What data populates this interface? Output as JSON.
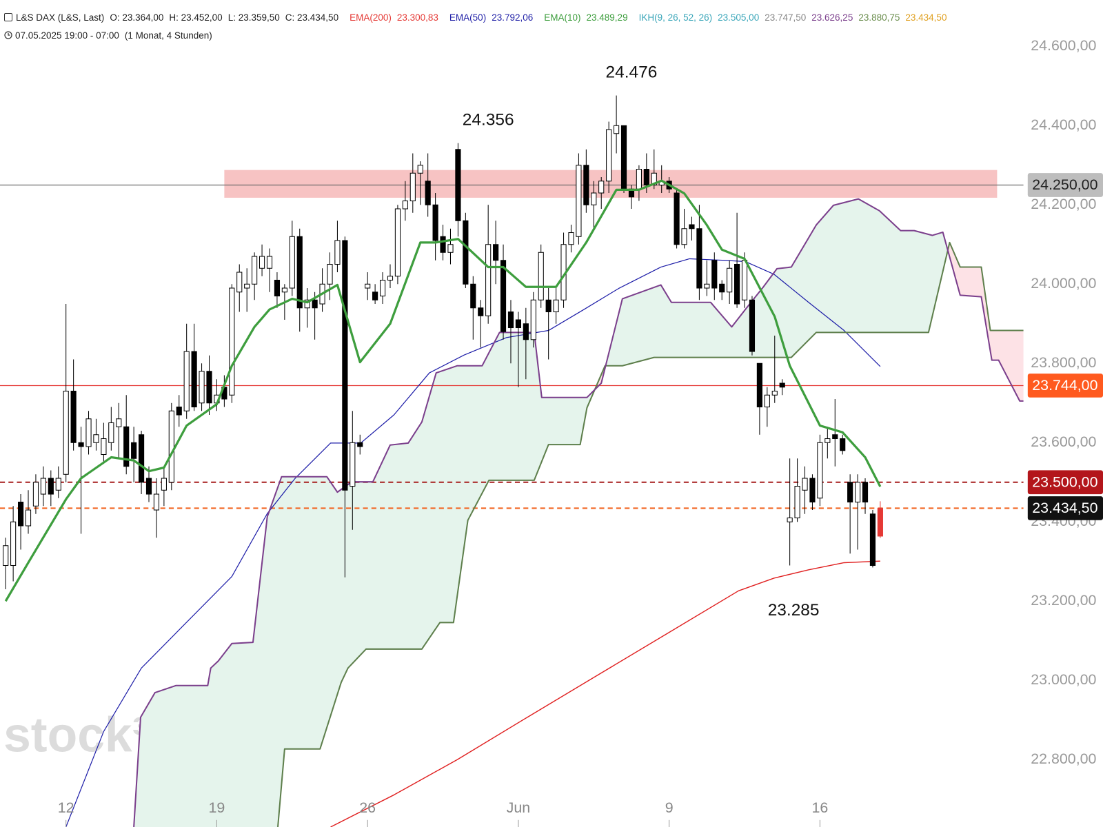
{
  "header": {
    "symbol": "L&S DAX (L&S, Last)",
    "ohlc": [
      "O: 23.364,00",
      "H: 23.452,00",
      "L: 23.359,50",
      "C: 23.434,50"
    ],
    "indicators": [
      {
        "name": "EMA(200)",
        "color": "#e53935",
        "values": [
          {
            "text": "23.300,83",
            "color": "#e53935"
          }
        ]
      },
      {
        "name": "EMA(50)",
        "color": "#2323a8",
        "values": [
          {
            "text": "23.792,06",
            "color": "#2323a8"
          }
        ]
      },
      {
        "name": "EMA(10)",
        "color": "#3e9e3e",
        "values": [
          {
            "text": "23.489,29",
            "color": "#3e9e3e"
          }
        ]
      },
      {
        "name": "IKH(9, 26, 52, 26)",
        "color": "#3aa6b9",
        "values": [
          {
            "text": "23.505,00",
            "color": "#3aa6b9"
          },
          {
            "text": "23.747,50",
            "color": "#888888"
          },
          {
            "text": "23.626,25",
            "color": "#7b3f8c"
          },
          {
            "text": "23.880,75",
            "color": "#6b8e4e"
          },
          {
            "text": "23.434,50",
            "color": "#e0a020"
          }
        ]
      }
    ],
    "period": "07.05.2025 19:00 - 07:00",
    "interval": "(1 Monat, 4 Stunden)"
  },
  "watermark": "stock³",
  "chart_data": {
    "type": "candlestick",
    "xlim": [
      -0.75,
      135
    ],
    "xticks": [
      {
        "value": 8,
        "label": "12"
      },
      {
        "value": 28,
        "label": "19"
      },
      {
        "value": 48,
        "label": "26"
      },
      {
        "value": 68,
        "label": "Jun"
      },
      {
        "value": 88,
        "label": "9"
      },
      {
        "value": 108,
        "label": "16"
      }
    ],
    "ylim": [
      22630,
      24717
    ],
    "yticks": [
      {
        "value": 22800,
        "label": "22.800,00"
      },
      {
        "value": 23000,
        "label": "23.000,00"
      },
      {
        "value": 23200,
        "label": "23.200,00"
      },
      {
        "value": 23400,
        "label": "23.400,00"
      },
      {
        "value": 23600,
        "label": "23.600,00"
      },
      {
        "value": 23800,
        "label": "23.800,00"
      },
      {
        "value": 24000,
        "label": "24.000,00"
      },
      {
        "value": 24200,
        "label": "24.200,00"
      },
      {
        "value": 24400,
        "label": "24.400,00"
      },
      {
        "value": 24600,
        "label": "24.600,00"
      }
    ],
    "grid": false,
    "up_color": "#ffffff",
    "down_color": "#000000",
    "last_color": "#e53935",
    "candles": {
      "open": [
        23290,
        23290,
        23450,
        23390,
        23440,
        23470,
        23510,
        23480,
        23520,
        23730,
        23600,
        23590,
        23600,
        23570,
        23600,
        23640,
        23640,
        23600,
        23620,
        23510,
        23430,
        23480,
        23500,
        23690,
        23680,
        23830,
        23700,
        23780,
        23700,
        23740,
        23720,
        23980,
        23990,
        24000,
        24040,
        24040,
        24010,
        23980,
        23990,
        24120,
        23940,
        23960,
        23950,
        24000,
        24050,
        24110,
        23490,
        23600,
        23990,
        23980,
        23970,
        24010,
        24020,
        24190,
        24210,
        24280,
        24260,
        24200,
        24120,
        24080,
        24340,
        24160,
        24000,
        23940,
        23920,
        24100,
        24060,
        23930,
        23910,
        23900,
        23860,
        23960,
        23960,
        23930,
        23960,
        24100,
        24120,
        24300,
        24200,
        24230,
        24260,
        24380,
        24400,
        24240,
        24240,
        24290,
        24250,
        24250,
        24260,
        24230,
        24100,
        24150,
        24140,
        23990,
        24060,
        24000,
        23980,
        24050,
        23960,
        23960,
        23800,
        23690,
        23720,
        23750,
        23400,
        23410,
        23480,
        23510,
        23460,
        23600,
        23620,
        23610,
        23500,
        23450,
        23500,
        23420,
        23364
      ],
      "high": [
        23360,
        23440,
        23470,
        23480,
        23520,
        23540,
        23530,
        23540,
        23950,
        23810,
        23640,
        23680,
        23660,
        23650,
        23690,
        23700,
        23720,
        23640,
        23630,
        23540,
        23510,
        23540,
        23700,
        23720,
        23900,
        23900,
        23800,
        23820,
        23760,
        23770,
        24000,
        24050,
        24040,
        24080,
        24100,
        24090,
        24030,
        24000,
        24160,
        24140,
        23990,
        23980,
        24040,
        24080,
        24160,
        24120,
        23680,
        23620,
        24030,
        24000,
        24030,
        24050,
        24200,
        24260,
        24330,
        24310,
        24330,
        24230,
        24150,
        24140,
        24356,
        24180,
        24020,
        23960,
        24200,
        24160,
        24100,
        23960,
        23930,
        23940,
        23980,
        24100,
        23990,
        23990,
        24130,
        24150,
        24330,
        24340,
        24260,
        24270,
        24410,
        24476,
        24400,
        24250,
        24300,
        24330,
        24340,
        24300,
        24270,
        24240,
        24190,
        24170,
        24200,
        24060,
        24080,
        24010,
        24060,
        24180,
        24080,
        23970,
        23800,
        23740,
        23870,
        23760,
        23560,
        23560,
        23540,
        23520,
        23620,
        23640,
        23710,
        23620,
        23520,
        23520,
        23510,
        23430,
        23452
      ],
      "low": [
        23230,
        23250,
        23330,
        23370,
        23420,
        23440,
        23440,
        23460,
        23500,
        23580,
        23370,
        23570,
        23580,
        23550,
        23580,
        23560,
        23520,
        23500,
        23470,
        23450,
        23360,
        23440,
        23480,
        23640,
        23660,
        23680,
        23680,
        23670,
        23680,
        23690,
        23700,
        23930,
        23930,
        23960,
        24020,
        23980,
        23940,
        23910,
        23970,
        23880,
        23890,
        23860,
        23930,
        23960,
        24030,
        23260,
        23380,
        23570,
        23960,
        23950,
        23950,
        23990,
        24000,
        24160,
        24180,
        24200,
        24170,
        24060,
        24060,
        24050,
        24120,
        23990,
        23860,
        23840,
        23900,
        24000,
        23860,
        23800,
        23740,
        23760,
        23840,
        23940,
        23810,
        23900,
        23940,
        24080,
        24100,
        24180,
        24140,
        24190,
        24230,
        24330,
        24230,
        24190,
        24210,
        24230,
        24240,
        24230,
        24230,
        24090,
        24090,
        24110,
        23960,
        23970,
        23960,
        23960,
        23950,
        23940,
        23940,
        23820,
        23620,
        23640,
        23700,
        23720,
        23290,
        23400,
        23420,
        23430,
        23440,
        23560,
        23540,
        23570,
        23320,
        23330,
        23420,
        23285,
        23359.5
      ],
      "close": [
        23340,
        23400,
        23390,
        23430,
        23500,
        23510,
        23470,
        23510,
        23730,
        23600,
        23590,
        23660,
        23620,
        23610,
        23650,
        23660,
        23540,
        23560,
        23500,
        23470,
        23470,
        23510,
        23680,
        23670,
        23830,
        23690,
        23780,
        23700,
        23720,
        23710,
        23990,
        24030,
        24000,
        24070,
        24070,
        24070,
        23970,
        23990,
        24120,
        23940,
        23960,
        23940,
        24000,
        24050,
        24110,
        23480,
        23600,
        23590,
        24000,
        23960,
        24010,
        24020,
        24190,
        24210,
        24280,
        24300,
        24200,
        24110,
        24080,
        24100,
        24160,
        24000,
        23940,
        23920,
        24100,
        24060,
        23880,
        23890,
        23890,
        23860,
        23960,
        24080,
        23930,
        23960,
        24100,
        24130,
        24300,
        24200,
        24230,
        24260,
        24390,
        24400,
        24240,
        24220,
        24290,
        24250,
        24280,
        24260,
        24240,
        24100,
        24140,
        24140,
        23990,
        24000,
        23990,
        23980,
        24040,
        23950,
        24060,
        23830,
        23690,
        23720,
        23730,
        23740,
        23410,
        23490,
        23510,
        23450,
        23600,
        23610,
        23610,
        23580,
        23450,
        23500,
        23450,
        23290,
        23434.5
      ]
    },
    "lines": [
      {
        "color": "#e02020",
        "width": 1.4,
        "x": [
          43.1,
          51.5,
          59.9,
          69.2,
          78.5,
          87.9,
          97.2,
          101.9,
          106.5,
          111.2,
          116
        ],
        "values": [
          22630,
          22711,
          22800,
          22907,
          23013,
          23120,
          23226,
          23258,
          23279,
          23297,
          23301
        ]
      },
      {
        "color": "#1e1ea8",
        "width": 1.2,
        "x": [
          8,
          13,
          18,
          23.5,
          30,
          34.7,
          38.4,
          43.1,
          47.1,
          51.5,
          56.2,
          60.8,
          66.4,
          72,
          76.7,
          81.3,
          86.9,
          90.7,
          95.3,
          98.1,
          101.9,
          106.5,
          111.2,
          116
        ],
        "values": [
          22630,
          22871,
          23031,
          23137,
          23262,
          23421,
          23510,
          23599,
          23599,
          23670,
          23776,
          23821,
          23865,
          23883,
          23936,
          23989,
          24043,
          24064,
          24060,
          24057,
          24025,
          23954,
          23883,
          23792
        ]
      },
      {
        "color": "#3e9e3e",
        "width": 3.2,
        "x": [
          0,
          3,
          8,
          10,
          14,
          17,
          19,
          21,
          24,
          28,
          30,
          33,
          35,
          38,
          40,
          44,
          47,
          51,
          55,
          57,
          60,
          64,
          66,
          69,
          73,
          77,
          81,
          84,
          87,
          90,
          93,
          95,
          98,
          102,
          104,
          108,
          111,
          114,
          116
        ],
        "values": [
          23200,
          23297,
          23457,
          23510,
          23563,
          23555,
          23528,
          23537,
          23643,
          23697,
          23794,
          23892,
          23936,
          23963,
          23954,
          23998,
          23803,
          23900,
          24105,
          24105,
          24114,
          24043,
          24043,
          23993,
          23993,
          24105,
          24238,
          24238,
          24261,
          24229,
          24149,
          24087,
          24064,
          23918,
          23794,
          23643,
          23626,
          23563,
          23489
        ]
      }
    ],
    "ichimoku": {
      "bull_fill": "#e5f4ec",
      "bear_fill": "#fde2e6",
      "span_a": {
        "color": "#7b3f8c",
        "width": 2,
        "x": [
          17,
          17.9,
          19.8,
          22.6,
          26.8,
          27.2,
          28.2,
          30,
          32.8,
          34.7,
          36.6,
          42.6,
          44,
          45.9,
          48.7,
          51,
          53.4,
          55.2,
          57.1,
          59.9,
          63.2,
          65.5,
          70.1,
          71.1,
          77.1,
          79,
          81.8,
          86.9,
          88.3,
          93.5,
          96.3,
          98.1,
          100.5,
          102.3,
          104.2,
          107.5,
          109.8,
          113.1,
          115.9,
          118.7,
          120.5,
          122.9,
          124.3,
          126.6,
          129.4,
          130.8,
          131.7,
          134.5,
          135
        ],
        "values": [
          22630,
          22907,
          22969,
          22987,
          22987,
          23031,
          23049,
          23093,
          23096,
          23413,
          23514,
          23514,
          23475,
          23501,
          23501,
          23594,
          23599,
          23652,
          23776,
          23794,
          23794,
          23878,
          23878,
          23714,
          23714,
          23750,
          23963,
          23998,
          23954,
          23954,
          23892,
          23936,
          23993,
          24039,
          24043,
          24149,
          24199,
          24215,
          24185,
          24135,
          24135,
          24123,
          24131,
          23972,
          23968,
          23808,
          23808,
          23705,
          23705
        ]
      },
      "span_b": {
        "color": "#5e7f4c",
        "width": 2,
        "x": [
          36.1,
          37,
          41.7,
          44.5,
          45.4,
          47.8,
          55.2,
          57.6,
          59.4,
          61.3,
          64.1,
          70.1,
          72,
          76.2,
          77.1,
          79.5,
          81.8,
          86,
          104.2,
          107.5,
          122.4,
          125.2,
          126.6,
          129.4,
          130.6,
          135
        ],
        "values": [
          22630,
          22827,
          22827,
          22995,
          23031,
          23079,
          23079,
          23146,
          23146,
          23404,
          23505,
          23505,
          23595,
          23595,
          23688,
          23794,
          23794,
          23815,
          23815,
          23878,
          23878,
          24105,
          24043,
          24043,
          23883,
          23883
        ]
      }
    },
    "zones": [
      {
        "from": 24218,
        "to": 24288,
        "x": [
          29,
          131.5
        ],
        "color": "#f6b9b9"
      }
    ],
    "hlines": [
      {
        "value": 24250,
        "color": "#6b6b6b",
        "style": "solid",
        "label": "24.250,00",
        "tag_color": "#bdbdbd",
        "text_color": "#222222"
      },
      {
        "value": 23744,
        "color": "#e53935",
        "style": "solid",
        "label": "23.744,00",
        "tag_color": "#ff5a1f",
        "text_color": "#ffffff"
      },
      {
        "value": 23500,
        "color": "#a61c1c",
        "style": "dashed",
        "label": "23.500,00",
        "tag_color": "#b3161b",
        "text_color": "#ffffff"
      },
      {
        "value": 23434.5,
        "color": "#f26522",
        "style": "dashed",
        "label": "23.434,50",
        "tag_color": "#111111",
        "text_color": "#ffffff"
      }
    ],
    "annotations": [
      {
        "label": "24.356",
        "value": 24356,
        "x": 64,
        "position": "above"
      },
      {
        "label": "24.476",
        "value": 24476,
        "x": 83,
        "position": "above"
      },
      {
        "label": "23.285",
        "value": 23285,
        "x": 104.5,
        "position": "below"
      }
    ]
  }
}
